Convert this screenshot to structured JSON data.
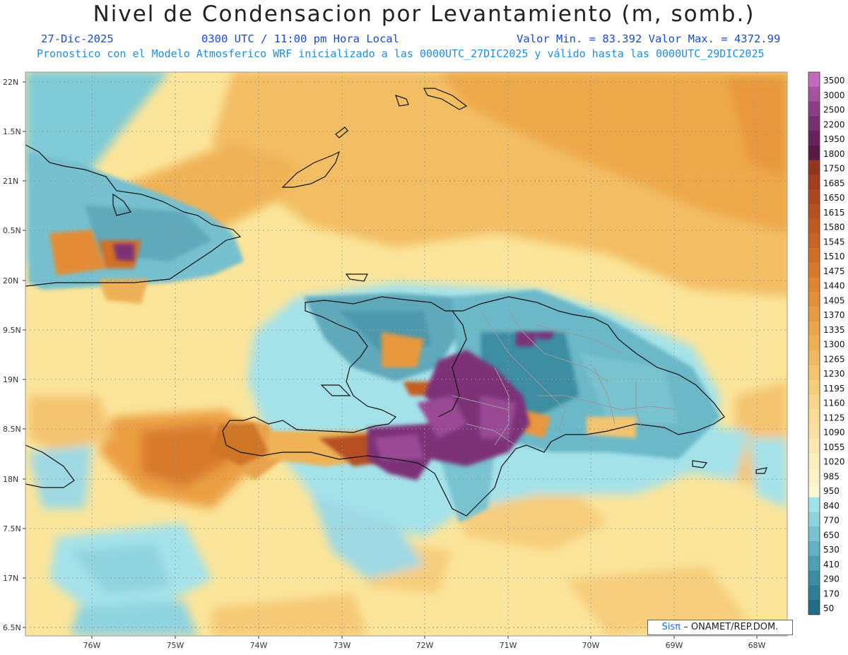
{
  "header": {
    "title": "Nivel de Condensacion por Levantamiento (m, somb.)",
    "date": "27-Dic-2025",
    "time": "0300 UTC / 11:00 pm Hora Local",
    "min_max": "Valor Min. = 83.392  Valor Max. = 4372.99",
    "forecast": "Pronostico con el Modelo Atmosferico WRF inicializado a las 0000UTC_27DIC2025 y válido hasta las  0000UTC_29DIC2025"
  },
  "axes": {
    "lat_labels": [
      "22N",
      "1.5N",
      "21N",
      "0.5N",
      "20N",
      "9.5N",
      "19N",
      "8.5N",
      "18N",
      "7.5N",
      "17N",
      "6.5N"
    ],
    "lon_labels": [
      "76W",
      "75W",
      "74W",
      "73W",
      "72W",
      "71W",
      "70W",
      "69W",
      "68W"
    ]
  },
  "colorbar": {
    "labels": [
      "3500",
      "3000",
      "2500",
      "2200",
      "1950",
      "1800",
      "1750",
      "1685",
      "1650",
      "1615",
      "1580",
      "1545",
      "1510",
      "1475",
      "1440",
      "1405",
      "1370",
      "1335",
      "1300",
      "1265",
      "1230",
      "1195",
      "1160",
      "1125",
      "1090",
      "1055",
      "1020",
      "985",
      "950",
      "840",
      "770",
      "650",
      "530",
      "410",
      "290",
      "170",
      "50"
    ],
    "colors": [
      "#c36bc0",
      "#a5559f",
      "#8a3e86",
      "#75306f",
      "#65245b",
      "#561a45",
      "#93361f",
      "#a03e20",
      "#ac4621",
      "#b65022",
      "#bf5a23",
      "#c86425",
      "#d06e27",
      "#d77a2b",
      "#dd8531",
      "#e29038",
      "#e69b41",
      "#eaa64b",
      "#eeb056",
      "#f1ba62",
      "#f4c46f",
      "#f6cd7c",
      "#f8d58a",
      "#f9dc97",
      "#fae2a4",
      "#fbe8b1",
      "#fbedbc",
      "#fcf2c6",
      "#fcf6d0",
      "#a4e2ea",
      "#8fd3de",
      "#79c2d0",
      "#62b0c1",
      "#4d9fb3",
      "#3c8ea4",
      "#2e7d95",
      "#226c86"
    ]
  },
  "credit": {
    "sis": "Sisπ",
    "rest": "– ONAMET/REP.DOM."
  },
  "colors": {
    "land_blue": "#5fb2c4",
    "ocean_yellow": "#fbe9a0",
    "purple": "#8a3e86",
    "orange": "#e8973c"
  }
}
